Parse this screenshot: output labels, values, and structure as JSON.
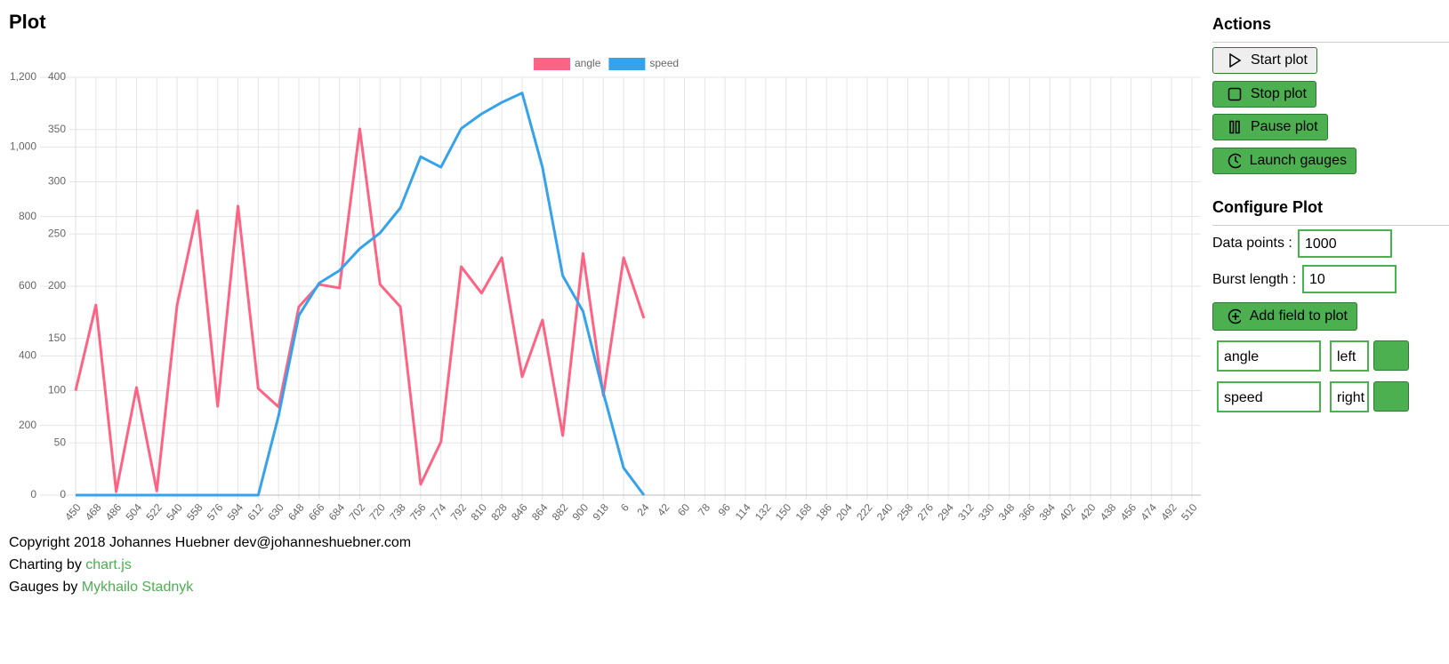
{
  "page": {
    "title": "Plot"
  },
  "chart_data": {
    "type": "line",
    "categories": [
      "450",
      "468",
      "486",
      "504",
      "522",
      "540",
      "558",
      "576",
      "594",
      "612",
      "630",
      "648",
      "666",
      "684",
      "702",
      "720",
      "738",
      "756",
      "774",
      "792",
      "810",
      "828",
      "846",
      "864",
      "882",
      "900",
      "918",
      "6",
      "24",
      "42",
      "60",
      "78",
      "96",
      "114",
      "132",
      "150",
      "168",
      "186",
      "204",
      "222",
      "240",
      "258",
      "276",
      "294",
      "312",
      "330",
      "348",
      "366",
      "384",
      "402",
      "420",
      "438",
      "456",
      "474",
      "492",
      "510"
    ],
    "series": [
      {
        "name": "angle",
        "color": "#ff6384",
        "axis": "y",
        "values": [
          300,
          546,
          10,
          309,
          12,
          546,
          817,
          255,
          830,
          306,
          253,
          541,
          605,
          595,
          1052,
          605,
          541,
          31,
          153,
          656,
          580,
          682,
          340,
          503,
          171,
          694,
          286,
          682,
          508,
          null,
          null,
          null,
          null,
          null,
          null,
          null,
          null,
          null,
          null,
          null,
          null,
          null,
          null,
          null,
          null,
          null,
          null,
          null,
          null,
          null,
          null,
          null,
          null,
          null,
          null,
          null
        ]
      },
      {
        "name": "speed",
        "color": "#36a2eb",
        "axis": "y2",
        "values": [
          0,
          0,
          0,
          0,
          0,
          0,
          0,
          0,
          0,
          0,
          76,
          172,
          203,
          215,
          236,
          251,
          275,
          324,
          314,
          351,
          365,
          376,
          385,
          314,
          210,
          176,
          98,
          26,
          0,
          null,
          null,
          null,
          null,
          null,
          null,
          null,
          null,
          null,
          null,
          null,
          null,
          null,
          null,
          null,
          null,
          null,
          null,
          null,
          null,
          null,
          null,
          null,
          null,
          null,
          null,
          null
        ]
      }
    ],
    "ylim": [
      0,
      1200
    ],
    "yticks": [
      0,
      200,
      400,
      600,
      800,
      {
        "value": 1000,
        "label": "1,000"
      },
      {
        "value": 1200,
        "label": "1,200"
      }
    ],
    "y2lim": [
      0,
      400
    ],
    "y2ticks": [
      0,
      50,
      100,
      150,
      200,
      250,
      300,
      350,
      400
    ],
    "grid": true,
    "legend": "top"
  },
  "sidebar": {
    "actions_title": "Actions",
    "buttons": [
      "Start plot",
      "Stop plot",
      "Pause plot",
      "Launch gauges"
    ],
    "configure_title": "Configure Plot",
    "data_points_label": "Data points :",
    "data_points_value": "1000",
    "burst_length_label": "Burst length :",
    "burst_length_value": "10",
    "add_field": "Add field to plot",
    "fields": [
      {
        "name": "angle",
        "axis": "left"
      },
      {
        "name": "speed",
        "axis": "right"
      }
    ]
  },
  "footer": {
    "copyright": "Copyright 2018 Johannes Huebner dev@johanneshuebner.com",
    "charting_prefix": "Charting by",
    "charting_link": "chart.js",
    "gauges_prefix": "Gauges by",
    "gauges_link": "Mykhailo Stadnyk"
  }
}
